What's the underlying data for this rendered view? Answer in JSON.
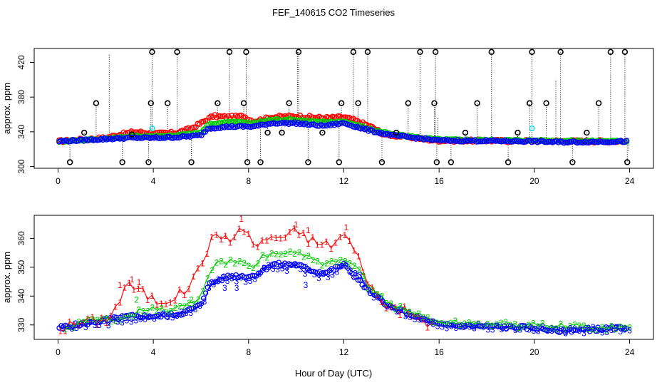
{
  "figure": {
    "title": "FEF_140615  CO2 Timeseries",
    "xlabel": "Hour of Day (UTC)"
  },
  "chart_data": [
    {
      "type": "scatter",
      "ylabel": "approx. ppm",
      "xlim": [
        -1,
        25
      ],
      "ylim": [
        298,
        436
      ],
      "xticks": [
        0,
        4,
        8,
        12,
        16,
        20,
        24
      ],
      "yticks": [
        300,
        340,
        380,
        420
      ],
      "grid": false,
      "colors": {
        "black": "#000000",
        "red": "#ff0000",
        "green": "#00cc00",
        "blue": "#0000ff",
        "cyan": "#00e5ee"
      },
      "series": [
        {
          "key": "black-spikes",
          "x": [
            0.5,
            1.1,
            1.6,
            2.7,
            3.1,
            3.8,
            3.9,
            3.95,
            4.6,
            5.0,
            5.6,
            6.7,
            7.2,
            7.8,
            7.9,
            7.95,
            8.5,
            8.8,
            9.4,
            9.7,
            10.1,
            10.5,
            11.1,
            11.8,
            11.9,
            12.4,
            12.6,
            13.0,
            13.6,
            14.2,
            14.7,
            15.2,
            15.8,
            15.85,
            15.9,
            16.5,
            17.1,
            17.6,
            18.2,
            18.9,
            19.3,
            19.8,
            19.9,
            20.5,
            21.1,
            21.6,
            22.2,
            22.7,
            23.2,
            23.8,
            23.9
          ],
          "y": [
            305,
            339,
            373,
            305,
            337,
            305,
            373,
            432,
            373,
            432,
            305,
            373,
            432,
            373,
            432,
            305,
            305,
            339,
            339,
            373,
            432,
            305,
            339,
            305,
            373,
            432,
            373,
            432,
            305,
            339,
            373,
            432,
            373,
            432,
            305,
            305,
            339,
            373,
            432,
            305,
            339,
            373,
            432,
            373,
            432,
            305,
            339,
            373,
            432,
            432,
            305
          ]
        },
        {
          "key": "red",
          "hours": [
            0,
            24
          ],
          "profile": [
            [
              0,
              329
            ],
            [
              2,
              333
            ],
            [
              2.6,
              337
            ],
            [
              3.2,
              340
            ],
            [
              4.2,
              338
            ],
            [
              5,
              339
            ],
            [
              5.6,
              344
            ],
            [
              6,
              350
            ],
            [
              6.5,
              358
            ],
            [
              7.2,
              357
            ],
            [
              7.8,
              358
            ],
            [
              8.2,
              352
            ],
            [
              9,
              357
            ],
            [
              10,
              358
            ],
            [
              10.6,
              357
            ],
            [
              11.2,
              356
            ],
            [
              12,
              357
            ],
            [
              12.6,
              352
            ],
            [
              13.2,
              345
            ],
            [
              13.7,
              337
            ],
            [
              15,
              333
            ],
            [
              15.8,
              330
            ],
            [
              24,
              329
            ]
          ]
        },
        {
          "key": "green",
          "hours": [
            0,
            24
          ],
          "profile": [
            [
              0,
              329
            ],
            [
              2,
              332
            ],
            [
              3.2,
              335
            ],
            [
              4.2,
              335
            ],
            [
              5,
              336
            ],
            [
              6,
              339
            ],
            [
              6.3,
              348
            ],
            [
              7.2,
              352
            ],
            [
              8.2,
              350
            ],
            [
              9,
              354
            ],
            [
              10,
              354
            ],
            [
              10.6,
              352
            ],
            [
              11.2,
              351
            ],
            [
              12,
              352
            ],
            [
              13,
              344
            ],
            [
              14,
              337
            ],
            [
              16,
              331
            ],
            [
              24,
              329
            ]
          ]
        },
        {
          "key": "blue",
          "hours": [
            0,
            24
          ],
          "profile": [
            [
              0,
              329
            ],
            [
              1.5,
              331
            ],
            [
              3,
              333
            ],
            [
              4.2,
              333
            ],
            [
              5.2,
              334
            ],
            [
              6,
              336
            ],
            [
              6.3,
              344
            ],
            [
              7.2,
              346
            ],
            [
              8.2,
              346
            ],
            [
              9,
              350
            ],
            [
              10,
              350
            ],
            [
              10.6,
              348
            ],
            [
              11.2,
              347
            ],
            [
              12,
              350
            ],
            [
              13,
              342
            ],
            [
              14,
              336
            ],
            [
              16,
              330
            ],
            [
              20,
              329
            ],
            [
              21,
              328
            ],
            [
              24,
              329
            ]
          ]
        },
        {
          "key": "cyan",
          "x": [
            3.95,
            19.9
          ],
          "y": [
            344,
            344
          ]
        }
      ]
    },
    {
      "type": "scatter",
      "ylabel": "approx. ppm",
      "xlim": [
        -1,
        25
      ],
      "ylim": [
        325,
        368
      ],
      "xticks": [
        0,
        4,
        8,
        12,
        16,
        20,
        24
      ],
      "yticks": [
        330,
        340,
        350,
        360
      ],
      "grid": false,
      "colors": {
        "red": "#ff0000",
        "green": "#00cc00",
        "blue": "#0000ff"
      },
      "series": [
        {
          "key": "1",
          "color": "red",
          "marker": "1",
          "profile": [
            [
              0.1,
              329
            ],
            [
              1,
              331
            ],
            [
              2,
              332
            ],
            [
              2.6,
              338
            ],
            [
              2.8,
              344
            ],
            [
              3.2,
              343
            ],
            [
              3.6,
              341
            ],
            [
              4.2,
              338
            ],
            [
              5,
              340
            ],
            [
              5.6,
              344
            ],
            [
              6,
              352
            ],
            [
              6.5,
              360
            ],
            [
              7,
              361
            ],
            [
              7.4,
              360
            ],
            [
              7.8,
              364
            ],
            [
              8.3,
              357
            ],
            [
              9,
              361
            ],
            [
              9.6,
              360
            ],
            [
              10,
              363
            ],
            [
              10.5,
              360
            ],
            [
              11,
              358
            ],
            [
              11.6,
              358
            ],
            [
              12,
              362
            ],
            [
              12.5,
              355
            ],
            [
              13,
              346
            ],
            [
              13.5,
              338
            ],
            [
              14.5,
              335
            ],
            [
              15.7,
              330
            ]
          ],
          "extra": [
            [
              2.6,
              344
            ],
            [
              3.1,
              346
            ],
            [
              3.4,
              345
            ],
            [
              7.7,
              367
            ],
            [
              10,
              365
            ],
            [
              10.5,
              363
            ],
            [
              12.1,
              364
            ]
          ]
        },
        {
          "key": "2",
          "color": "green",
          "marker": "2",
          "profile": [
            [
              0.3,
              329
            ],
            [
              1,
              331
            ],
            [
              2,
              332
            ],
            [
              2.8,
              333
            ],
            [
              3.2,
              334
            ],
            [
              3.6,
              336
            ],
            [
              4.2,
              335
            ],
            [
              5,
              336
            ],
            [
              5.4,
              337
            ],
            [
              6,
              339
            ],
            [
              6.3,
              348
            ],
            [
              6.8,
              352
            ],
            [
              7.4,
              352
            ],
            [
              8.2,
              350
            ],
            [
              8.6,
              354
            ],
            [
              9.2,
              355
            ],
            [
              10,
              355
            ],
            [
              10.6,
              353
            ],
            [
              11.2,
              351
            ],
            [
              12,
              352
            ],
            [
              12.6,
              350
            ],
            [
              13,
              344
            ],
            [
              14,
              337
            ],
            [
              16,
              331
            ],
            [
              24,
              329
            ]
          ],
          "extra": [
            [
              3.3,
              339
            ],
            [
              5.6,
              339
            ]
          ]
        },
        {
          "key": "3",
          "color": "blue",
          "marker": "3",
          "profile": [
            [
              0.2,
              329
            ],
            [
              1,
              330
            ],
            [
              2,
              331
            ],
            [
              3,
              332
            ],
            [
              4.2,
              333
            ],
            [
              5.2,
              334
            ],
            [
              6,
              336
            ],
            [
              6.3,
              342
            ],
            [
              6.6,
              346
            ],
            [
              7.4,
              346
            ],
            [
              8.2,
              346
            ],
            [
              8.6,
              350
            ],
            [
              9.2,
              350
            ],
            [
              10,
              350
            ],
            [
              10.6,
              348
            ],
            [
              11.2,
              347
            ],
            [
              12,
              350
            ],
            [
              12.6,
              348
            ],
            [
              13,
              342
            ],
            [
              14,
              336
            ],
            [
              16,
              330
            ],
            [
              20,
              329
            ],
            [
              21,
              328
            ],
            [
              24,
              329
            ]
          ],
          "extra": [
            [
              7.0,
              343
            ],
            [
              7.5,
              343
            ],
            [
              10.4,
              344
            ]
          ]
        },
        {
          "key": "circles",
          "hours": [
            0,
            24
          ],
          "profile": [
            [
              0,
              329
            ],
            [
              1.5,
              331
            ],
            [
              3,
              333
            ],
            [
              4.2,
              333
            ],
            [
              5.2,
              334
            ],
            [
              6,
              337
            ],
            [
              6.3,
              344
            ],
            [
              7.2,
              347
            ],
            [
              8.2,
              347
            ],
            [
              9,
              351
            ],
            [
              10,
              351
            ],
            [
              10.6,
              349
            ],
            [
              11.2,
              348
            ],
            [
              12,
              351
            ],
            [
              13,
              342
            ],
            [
              14,
              336
            ],
            [
              16,
              330
            ],
            [
              20,
              329
            ],
            [
              21,
              328
            ],
            [
              24,
              329
            ]
          ]
        }
      ]
    }
  ]
}
